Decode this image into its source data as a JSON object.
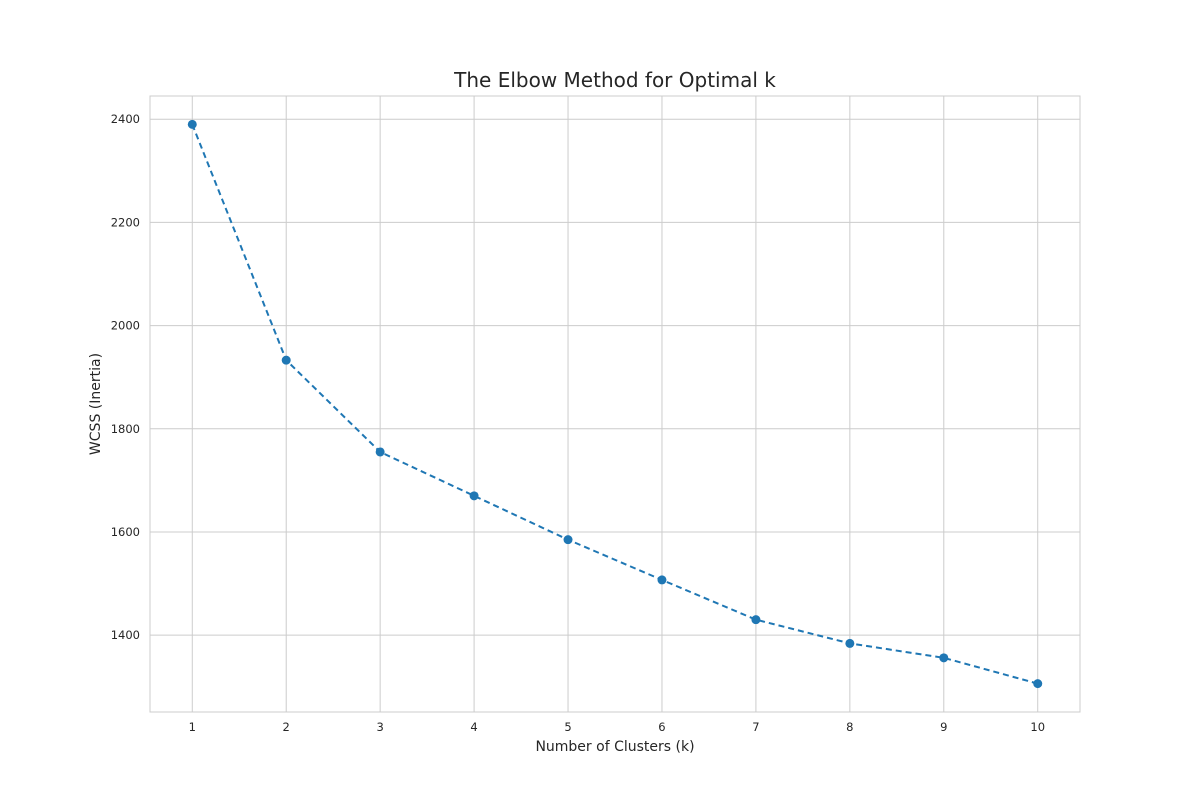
{
  "chart_data": {
    "type": "line",
    "title": "The Elbow Method for Optimal k",
    "xlabel": "Number of Clusters (k)",
    "ylabel": "WCSS (Inertia)",
    "x": [
      1,
      2,
      3,
      4,
      5,
      6,
      7,
      8,
      9,
      10
    ],
    "series": [
      {
        "values": [
          2390,
          1933,
          1755,
          1670,
          1585,
          1507,
          1430,
          1384,
          1356,
          1306
        ],
        "color": "#1f77b4",
        "linestyle": "dashed",
        "marker": "circle"
      }
    ],
    "xticks": [
      "1",
      "2",
      "3",
      "4",
      "5",
      "6",
      "7",
      "8",
      "9",
      "10"
    ],
    "yticks": [
      "1400",
      "1600",
      "1800",
      "2000",
      "2200",
      "2400"
    ],
    "ytick_values": [
      1400,
      1600,
      1800,
      2000,
      2200,
      2400
    ],
    "xlim": [
      0.55,
      10.45
    ],
    "ylim": [
      1251,
      2445
    ],
    "grid": true
  }
}
